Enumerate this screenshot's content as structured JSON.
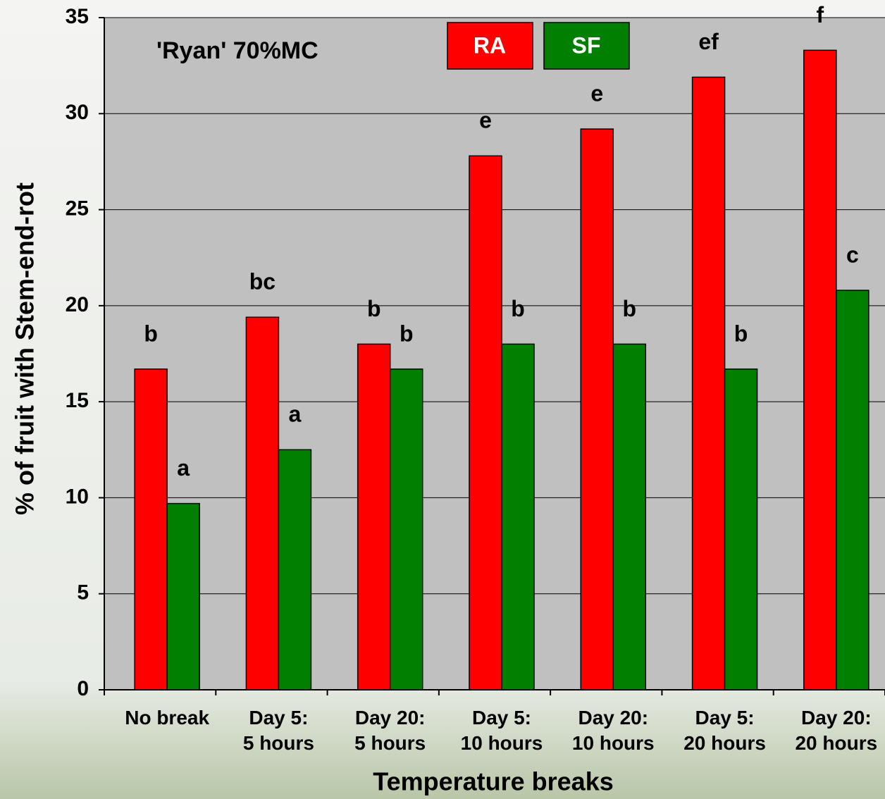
{
  "chart_data": {
    "type": "bar",
    "title": "'Ryan' 70%MC",
    "x_label": "Temperature breaks",
    "y_label": "% of fruit with Stem-end-rot",
    "categories": [
      "No break",
      "Day 5:\n5 hours",
      "Day 20:\n5 hours",
      "Day 5:\n10 hours",
      "Day 20:\n10 hours",
      "Day 5:\n20 hours",
      "Day 20:\n20 hours"
    ],
    "series": [
      {
        "name": "RA",
        "color": "#ff0000",
        "values": [
          16.7,
          19.4,
          18.0,
          27.8,
          29.2,
          31.9,
          33.3
        ],
        "letters": [
          "b",
          "bc",
          "b",
          "e",
          "e",
          "ef",
          "f"
        ]
      },
      {
        "name": "SF",
        "color": "#007f00",
        "values": [
          9.7,
          12.5,
          16.7,
          18.0,
          18.0,
          16.7,
          20.8
        ],
        "letters": [
          "a",
          "a",
          "b",
          "b",
          "b",
          "b",
          "c"
        ]
      }
    ],
    "ylim": [
      0,
      35
    ],
    "yticks": [
      0,
      5,
      10,
      15,
      20,
      25,
      30,
      35
    ],
    "grid": true,
    "legend": "top"
  }
}
